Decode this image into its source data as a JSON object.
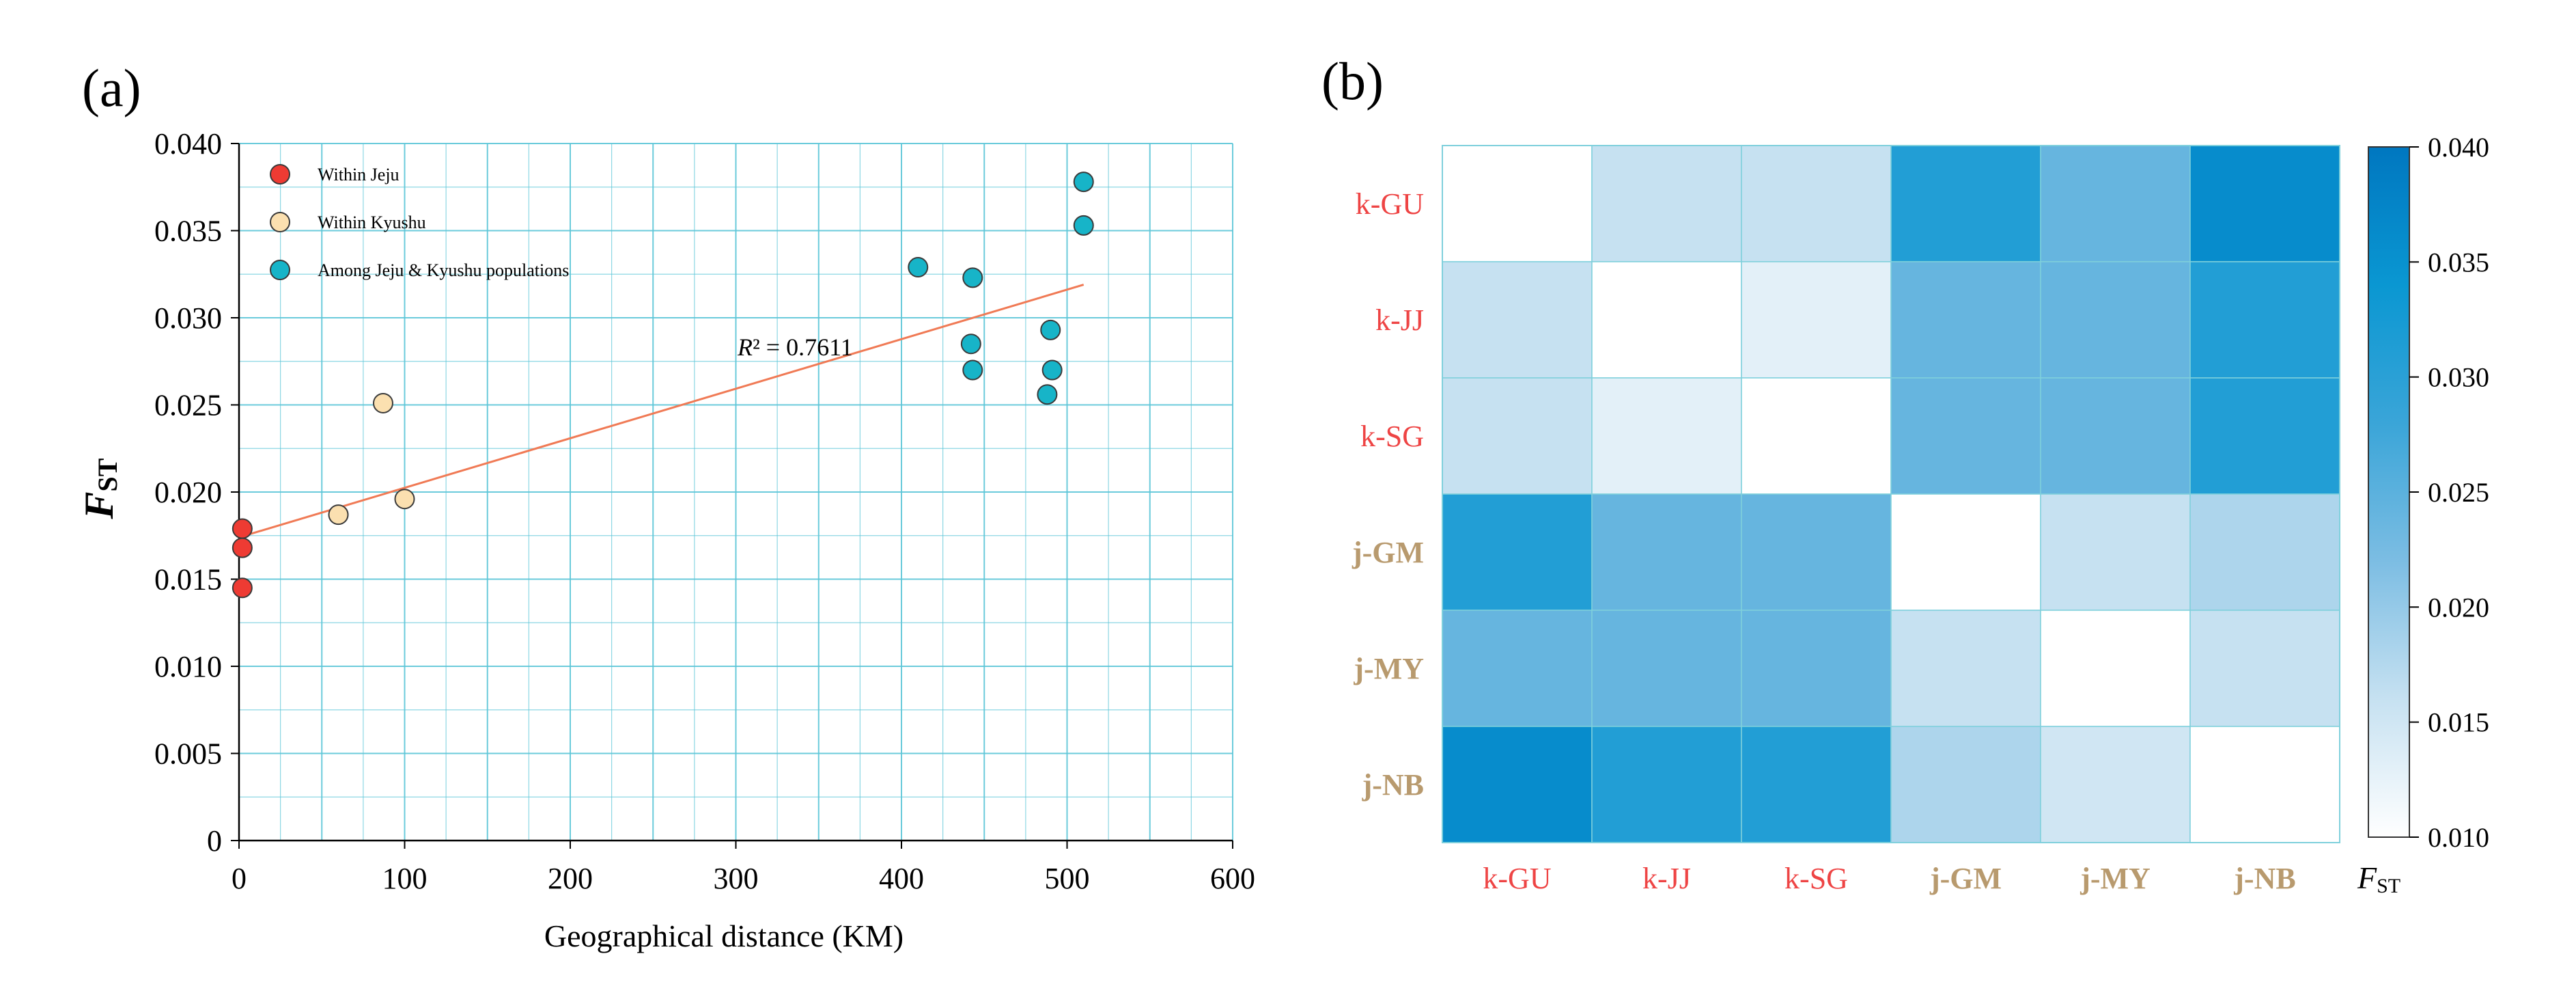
{
  "panel_a": {
    "label": "(a)",
    "ylabel_main": "F",
    "ylabel_sub": "ST",
    "r2_prefix": "R",
    "r2_suffix": "² = 0.7611",
    "accent_colors": {
      "grid": "#5cc6d8",
      "trend": "#f07a55"
    }
  },
  "panel_b": {
    "label": "(b)",
    "colorbar_label_main": "F",
    "colorbar_label_sub": "ST"
  },
  "chart_data": [
    {
      "type": "scatter",
      "title": "",
      "xlabel": "Geographical distance (KM)",
      "ylabel": "FST",
      "xlim": [
        0,
        600
      ],
      "ylim": [
        0,
        0.04
      ],
      "xticks": [
        "0",
        "100",
        "200",
        "300",
        "400",
        "500",
        "600"
      ],
      "yticks": [
        "0",
        "0.005",
        "0.010",
        "0.015",
        "0.020",
        "0.025",
        "0.030",
        "0.035",
        "0.040"
      ],
      "grid": true,
      "legend_position": "top-left",
      "series": [
        {
          "name": "Within Jeju",
          "color": "#ee3b33",
          "points": [
            [
              2,
              0.0179
            ],
            [
              2,
              0.0168
            ],
            [
              2,
              0.0145
            ]
          ]
        },
        {
          "name": "Within Kyushu",
          "color": "#fbe0b0",
          "points": [
            [
              87,
              0.0251
            ],
            [
              60,
              0.0187
            ],
            [
              100,
              0.0196
            ]
          ]
        },
        {
          "name": "Among Jeju & Kyushu populations",
          "color": "#17b4c8",
          "points": [
            [
              410,
              0.0329
            ],
            [
              443,
              0.0323
            ],
            [
              442,
              0.0285
            ],
            [
              443,
              0.027
            ],
            [
              490,
              0.0293
            ],
            [
              491,
              0.027
            ],
            [
              488,
              0.0256
            ],
            [
              510,
              0.0378
            ],
            [
              510,
              0.0353
            ]
          ]
        }
      ],
      "trendline": {
        "x0": 0,
        "y0": 0.0174,
        "x1": 510,
        "y1": 0.0319,
        "r2": 0.7611,
        "label": "R² = 0.7611"
      }
    },
    {
      "type": "heatmap",
      "title": "",
      "rows": [
        "k-GU",
        "k-JJ",
        "k-SG",
        "j-GM",
        "j-MY",
        "j-NB"
      ],
      "cols": [
        "k-GU",
        "k-JJ",
        "k-SG",
        "j-GM",
        "j-MY",
        "j-NB"
      ],
      "label_colors": {
        "k": "#ee4444",
        "j": "#b89a6e"
      },
      "values": [
        [
          0.01,
          0.016,
          0.016,
          0.031,
          0.024,
          0.036
        ],
        [
          0.016,
          0.01,
          0.013,
          0.024,
          0.024,
          0.031
        ],
        [
          0.016,
          0.013,
          0.01,
          0.024,
          0.024,
          0.031
        ],
        [
          0.031,
          0.024,
          0.024,
          0.01,
          0.016,
          0.018
        ],
        [
          0.024,
          0.024,
          0.024,
          0.016,
          0.01,
          0.016
        ],
        [
          0.036,
          0.031,
          0.031,
          0.018,
          0.015,
          0.01
        ]
      ],
      "colorbar": {
        "min": 0.01,
        "max": 0.04,
        "ticks": [
          "0.010",
          "0.015",
          "0.020",
          "0.025",
          "0.030",
          "0.035",
          "0.040"
        ],
        "colors": [
          "#ffffff",
          "#c6e1f1",
          "#7cbde3",
          "#3aa5d8",
          "#0a97d2",
          "#0077c0"
        ]
      }
    }
  ]
}
